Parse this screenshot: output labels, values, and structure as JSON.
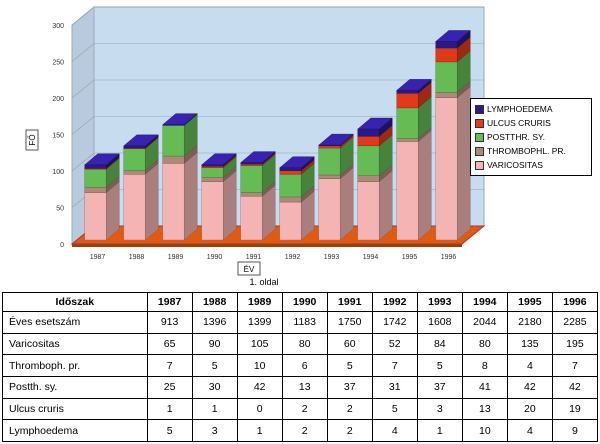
{
  "chart_data": {
    "type": "bar",
    "stacked": true,
    "three_d": true,
    "categories": [
      "1987",
      "1988",
      "1989",
      "1990",
      "1991",
      "1992",
      "1993",
      "1994",
      "1995",
      "1996"
    ],
    "series": [
      {
        "name": "Varicositas",
        "color": "#f4b4b4",
        "values": [
          65,
          90,
          105,
          80,
          60,
          52,
          84,
          80,
          135,
          195
        ]
      },
      {
        "name": "Thromboph. pr.",
        "color": "#b08878",
        "values": [
          7,
          5,
          10,
          6,
          5,
          7,
          5,
          8,
          4,
          7
        ]
      },
      {
        "name": "Postth. sy.",
        "color": "#66bb55",
        "values": [
          25,
          30,
          42,
          13,
          37,
          31,
          37,
          41,
          42,
          42
        ]
      },
      {
        "name": "Ulcus cruris",
        "color": "#e03a1a",
        "values": [
          1,
          1,
          0,
          2,
          2,
          5,
          3,
          13,
          20,
          19
        ]
      },
      {
        "name": "Lymphoedema",
        "color": "#2a1a88",
        "values": [
          5,
          3,
          1,
          2,
          2,
          4,
          1,
          10,
          4,
          9
        ]
      }
    ],
    "legend_labels": [
      "LYMPHOEDEMA",
      "ULCUS CRURIS",
      "POSTTHR. SY.",
      "THROMBOPHL. PR.",
      "VARICOSITAS"
    ],
    "yticks": [
      "0",
      "50",
      "100",
      "150",
      "200",
      "250",
      "300"
    ],
    "ylim": [
      0,
      300
    ],
    "ylabel": "FŐ",
    "xlabel": "ÉV",
    "page_label": "1. oldal",
    "legend_position": "right",
    "wall_color": "#c8dcf0",
    "floor_color": "#e05a10"
  },
  "table": {
    "header": [
      "Időszak",
      "1987",
      "1988",
      "1989",
      "1990",
      "1991",
      "1992",
      "1993",
      "1994",
      "1995",
      "1996"
    ],
    "rows": [
      {
        "label": "Éves esetszám",
        "values": [
          "913",
          "1396",
          "1399",
          "1183",
          "1750",
          "1742",
          "1608",
          "2044",
          "2180",
          "2285"
        ]
      },
      {
        "label": "Varicositas",
        "values": [
          "65",
          "90",
          "105",
          "80",
          "60",
          "52",
          "84",
          "80",
          "135",
          "195"
        ]
      },
      {
        "label": "Thromboph. pr.",
        "values": [
          "7",
          "5",
          "10",
          "6",
          "5",
          "7",
          "5",
          "8",
          "4",
          "7"
        ]
      },
      {
        "label": "Postth. sy.",
        "values": [
          "25",
          "30",
          "42",
          "13",
          "37",
          "31",
          "37",
          "41",
          "42",
          "42"
        ]
      },
      {
        "label": "Ulcus cruris",
        "values": [
          "1",
          "1",
          "0",
          "2",
          "2",
          "5",
          "3",
          "13",
          "20",
          "19"
        ]
      },
      {
        "label": "Lymphoedema",
        "values": [
          "5",
          "3",
          "1",
          "2",
          "2",
          "4",
          "1",
          "10",
          "4",
          "9"
        ]
      }
    ]
  }
}
